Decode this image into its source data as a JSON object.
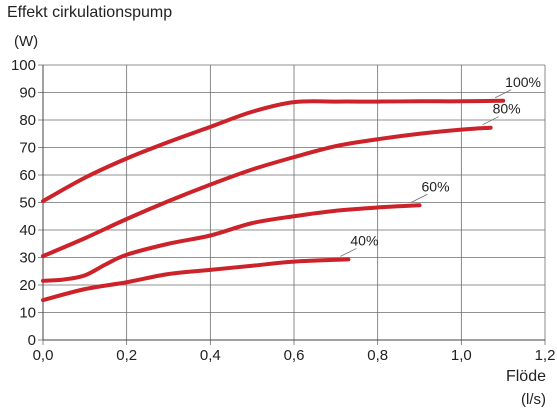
{
  "chart_data": {
    "type": "line",
    "title": "Effekt cirkulationspump",
    "ylabel": "(W)",
    "xlabel": "Flöde",
    "xunit": "(l/s)",
    "xlim": [
      0,
      1.2
    ],
    "ylim": [
      0,
      100
    ],
    "xticks": [
      "0,0",
      "0,2",
      "0,4",
      "0,6",
      "0,8",
      "1,0",
      "1,2"
    ],
    "yticks": [
      "0",
      "10",
      "20",
      "30",
      "40",
      "50",
      "60",
      "70",
      "80",
      "90",
      "100"
    ],
    "grid": true,
    "line_color": "#cc2229",
    "series": [
      {
        "name": "100%",
        "x": [
          0,
          0.1,
          0.2,
          0.3,
          0.4,
          0.5,
          0.6,
          0.7,
          0.8,
          0.9,
          1.0,
          1.1
        ],
        "y": [
          50.5,
          59,
          66,
          72,
          77.5,
          83,
          86.5,
          86.7,
          86.7,
          86.8,
          86.8,
          87
        ]
      },
      {
        "name": "80%",
        "x": [
          0,
          0.1,
          0.2,
          0.3,
          0.4,
          0.5,
          0.6,
          0.7,
          0.8,
          0.9,
          1.0,
          1.07
        ],
        "y": [
          30.5,
          37,
          44,
          50.5,
          56.5,
          62,
          66.5,
          70.5,
          73,
          75,
          76.5,
          77.2
        ]
      },
      {
        "name": "60%",
        "x": [
          0,
          0.05,
          0.1,
          0.15,
          0.2,
          0.3,
          0.4,
          0.5,
          0.6,
          0.7,
          0.8,
          0.9
        ],
        "y": [
          21.5,
          22,
          23.5,
          27.5,
          31,
          35,
          38,
          42.5,
          45,
          47,
          48.2,
          49
        ]
      },
      {
        "name": "40%",
        "x": [
          0,
          0.1,
          0.2,
          0.3,
          0.4,
          0.5,
          0.6,
          0.73
        ],
        "y": [
          14.5,
          18.5,
          21,
          24,
          25.5,
          27,
          28.5,
          29.3
        ]
      }
    ]
  }
}
